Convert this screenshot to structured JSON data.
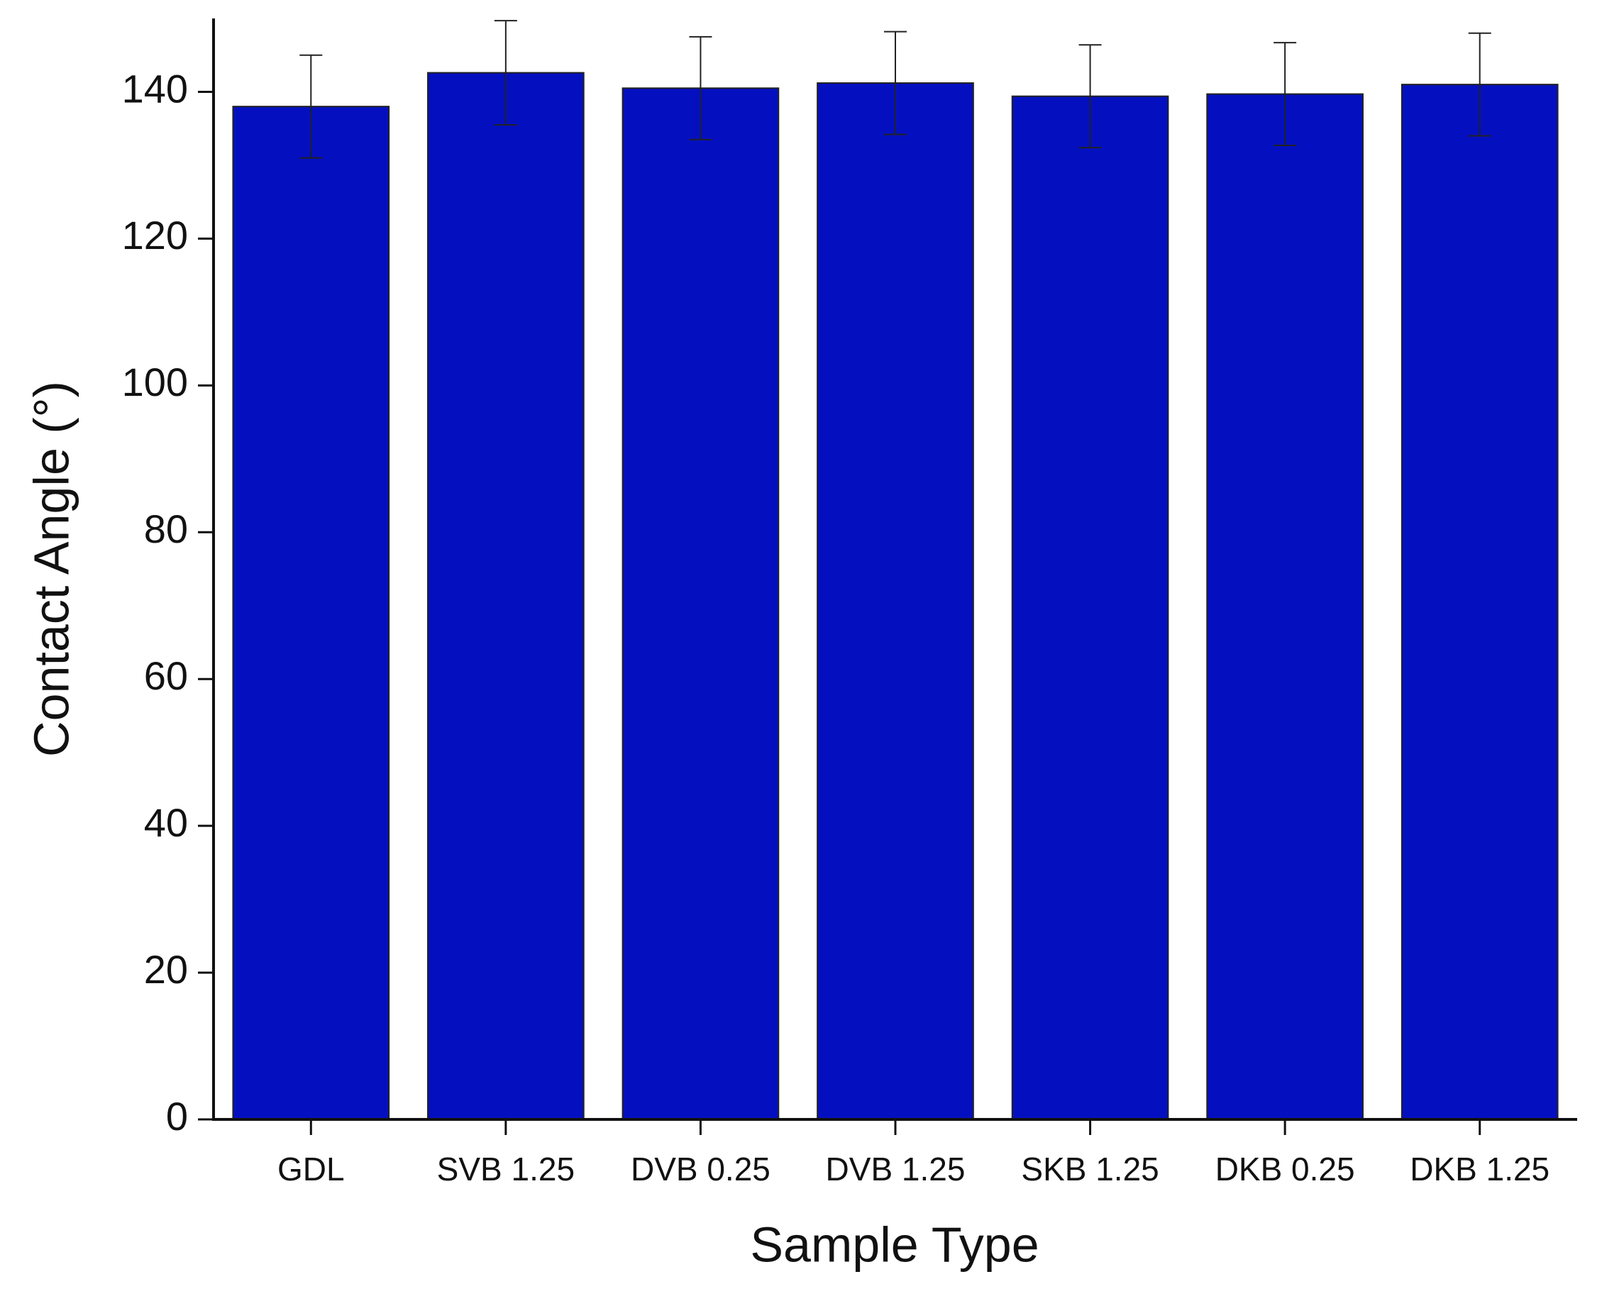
{
  "chart_data": {
    "type": "bar",
    "x_label": "Sample Type",
    "y_label": "Contact Angle (°)",
    "categories": [
      "GDL",
      "SVB 1.25",
      "DVB 0.25",
      "DVB 1.25",
      "SKB 1.25",
      "DKB 0.25",
      "DKB 1.25"
    ],
    "values": [
      138,
      142.6,
      140.5,
      141.2,
      139.4,
      139.7,
      141
    ],
    "errors": [
      7,
      7.1,
      7,
      7,
      7,
      7,
      7
    ],
    "color": "#0410c0",
    "ylim": [
      0,
      150
    ],
    "yticks": [
      0,
      20,
      40,
      60,
      80,
      100,
      120,
      140
    ],
    "grid": false
  }
}
